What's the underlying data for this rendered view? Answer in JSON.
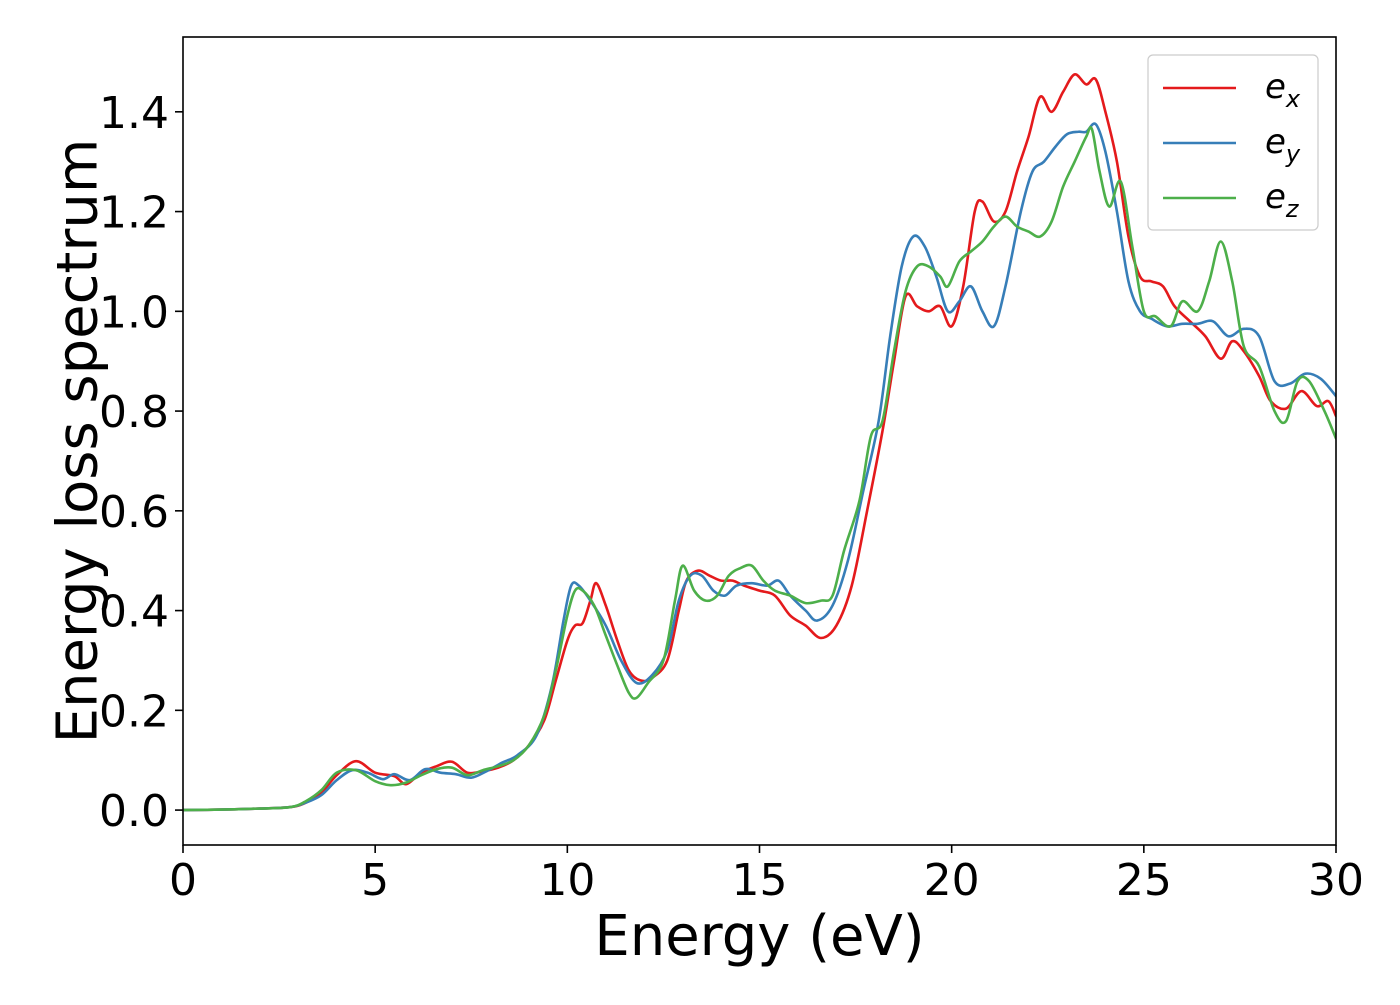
{
  "chart_data": {
    "type": "line",
    "title": "",
    "xlabel": "Energy (eV)",
    "ylabel": "Energy loss spectrum",
    "xlim": [
      0,
      30
    ],
    "ylim": [
      -0.07,
      1.55
    ],
    "xticks": [
      0,
      5,
      10,
      15,
      20,
      25,
      30
    ],
    "xtick_labels": [
      "0",
      "5",
      "10",
      "15",
      "20",
      "25",
      "30"
    ],
    "yticks": [
      0.0,
      0.2,
      0.4,
      0.6,
      0.8,
      1.0,
      1.2,
      1.4
    ],
    "ytick_labels": [
      "0.0",
      "0.2",
      "0.4",
      "0.6",
      "0.8",
      "1.0",
      "1.2",
      "1.4"
    ],
    "grid": false,
    "legend_position": "top-right",
    "series": [
      {
        "name": "e_x",
        "legend_base": "e",
        "legend_sub": "x",
        "color": "#e41a1c",
        "points": [
          [
            0,
            0.0
          ],
          [
            1,
            0.001
          ],
          [
            2,
            0.003
          ],
          [
            2.8,
            0.006
          ],
          [
            3.2,
            0.015
          ],
          [
            3.6,
            0.035
          ],
          [
            4.0,
            0.07
          ],
          [
            4.5,
            0.098
          ],
          [
            5.0,
            0.075
          ],
          [
            5.5,
            0.068
          ],
          [
            5.8,
            0.052
          ],
          [
            6.2,
            0.075
          ],
          [
            6.6,
            0.088
          ],
          [
            7.0,
            0.097
          ],
          [
            7.4,
            0.075
          ],
          [
            7.8,
            0.078
          ],
          [
            8.2,
            0.085
          ],
          [
            8.6,
            0.1
          ],
          [
            9.0,
            0.13
          ],
          [
            9.4,
            0.18
          ],
          [
            9.7,
            0.26
          ],
          [
            10.0,
            0.34
          ],
          [
            10.2,
            0.37
          ],
          [
            10.4,
            0.375
          ],
          [
            10.6,
            0.42
          ],
          [
            10.75,
            0.455
          ],
          [
            11.0,
            0.41
          ],
          [
            11.3,
            0.34
          ],
          [
            11.6,
            0.28
          ],
          [
            11.9,
            0.26
          ],
          [
            12.2,
            0.265
          ],
          [
            12.6,
            0.3
          ],
          [
            12.9,
            0.4
          ],
          [
            13.1,
            0.46
          ],
          [
            13.4,
            0.48
          ],
          [
            13.7,
            0.47
          ],
          [
            14.0,
            0.46
          ],
          [
            14.3,
            0.46
          ],
          [
            14.6,
            0.45
          ],
          [
            15.0,
            0.44
          ],
          [
            15.4,
            0.43
          ],
          [
            15.8,
            0.39
          ],
          [
            16.2,
            0.37
          ],
          [
            16.6,
            0.345
          ],
          [
            17.0,
            0.37
          ],
          [
            17.4,
            0.45
          ],
          [
            17.8,
            0.6
          ],
          [
            18.2,
            0.76
          ],
          [
            18.5,
            0.9
          ],
          [
            18.8,
            1.03
          ],
          [
            19.1,
            1.01
          ],
          [
            19.4,
            1.0
          ],
          [
            19.7,
            1.01
          ],
          [
            20.0,
            0.97
          ],
          [
            20.3,
            1.05
          ],
          [
            20.6,
            1.2
          ],
          [
            20.8,
            1.22
          ],
          [
            21.1,
            1.18
          ],
          [
            21.4,
            1.2
          ],
          [
            21.7,
            1.28
          ],
          [
            22.0,
            1.35
          ],
          [
            22.3,
            1.43
          ],
          [
            22.6,
            1.4
          ],
          [
            22.9,
            1.44
          ],
          [
            23.2,
            1.475
          ],
          [
            23.5,
            1.455
          ],
          [
            23.75,
            1.465
          ],
          [
            24.0,
            1.4
          ],
          [
            24.3,
            1.3
          ],
          [
            24.6,
            1.15
          ],
          [
            24.9,
            1.07
          ],
          [
            25.2,
            1.06
          ],
          [
            25.5,
            1.05
          ],
          [
            25.8,
            1.01
          ],
          [
            26.2,
            0.98
          ],
          [
            26.6,
            0.95
          ],
          [
            27.0,
            0.905
          ],
          [
            27.3,
            0.94
          ],
          [
            27.6,
            0.92
          ],
          [
            28.0,
            0.87
          ],
          [
            28.3,
            0.82
          ],
          [
            28.7,
            0.805
          ],
          [
            29.1,
            0.84
          ],
          [
            29.5,
            0.81
          ],
          [
            29.8,
            0.82
          ],
          [
            30.0,
            0.79
          ]
        ]
      },
      {
        "name": "e_y",
        "legend_base": "e",
        "legend_sub": "y",
        "color": "#377eb8",
        "points": [
          [
            0,
            0.0
          ],
          [
            1,
            0.001
          ],
          [
            2,
            0.003
          ],
          [
            2.8,
            0.006
          ],
          [
            3.2,
            0.015
          ],
          [
            3.6,
            0.03
          ],
          [
            4.0,
            0.06
          ],
          [
            4.4,
            0.08
          ],
          [
            4.8,
            0.075
          ],
          [
            5.2,
            0.062
          ],
          [
            5.5,
            0.072
          ],
          [
            5.9,
            0.06
          ],
          [
            6.3,
            0.082
          ],
          [
            6.7,
            0.075
          ],
          [
            7.1,
            0.072
          ],
          [
            7.5,
            0.065
          ],
          [
            7.9,
            0.078
          ],
          [
            8.3,
            0.095
          ],
          [
            8.7,
            0.11
          ],
          [
            9.2,
            0.15
          ],
          [
            9.6,
            0.25
          ],
          [
            9.9,
            0.38
          ],
          [
            10.1,
            0.45
          ],
          [
            10.3,
            0.45
          ],
          [
            10.6,
            0.42
          ],
          [
            11.0,
            0.37
          ],
          [
            11.4,
            0.3
          ],
          [
            11.8,
            0.255
          ],
          [
            12.2,
            0.27
          ],
          [
            12.6,
            0.32
          ],
          [
            12.9,
            0.42
          ],
          [
            13.2,
            0.47
          ],
          [
            13.5,
            0.47
          ],
          [
            13.8,
            0.44
          ],
          [
            14.1,
            0.43
          ],
          [
            14.4,
            0.45
          ],
          [
            14.8,
            0.455
          ],
          [
            15.2,
            0.45
          ],
          [
            15.5,
            0.46
          ],
          [
            15.8,
            0.43
          ],
          [
            16.2,
            0.4
          ],
          [
            16.5,
            0.38
          ],
          [
            16.9,
            0.41
          ],
          [
            17.3,
            0.5
          ],
          [
            17.7,
            0.64
          ],
          [
            18.1,
            0.78
          ],
          [
            18.4,
            0.95
          ],
          [
            18.7,
            1.09
          ],
          [
            19.0,
            1.15
          ],
          [
            19.3,
            1.13
          ],
          [
            19.6,
            1.07
          ],
          [
            19.9,
            1.0
          ],
          [
            20.2,
            1.02
          ],
          [
            20.5,
            1.05
          ],
          [
            20.8,
            1.0
          ],
          [
            21.1,
            0.97
          ],
          [
            21.4,
            1.05
          ],
          [
            21.8,
            1.2
          ],
          [
            22.1,
            1.28
          ],
          [
            22.4,
            1.3
          ],
          [
            22.7,
            1.33
          ],
          [
            23.0,
            1.355
          ],
          [
            23.3,
            1.36
          ],
          [
            23.5,
            1.36
          ],
          [
            23.75,
            1.375
          ],
          [
            24.0,
            1.32
          ],
          [
            24.3,
            1.2
          ],
          [
            24.6,
            1.06
          ],
          [
            24.9,
            1.0
          ],
          [
            25.2,
            0.985
          ],
          [
            25.6,
            0.97
          ],
          [
            26.0,
            0.975
          ],
          [
            26.4,
            0.975
          ],
          [
            26.8,
            0.98
          ],
          [
            27.2,
            0.95
          ],
          [
            27.6,
            0.965
          ],
          [
            28.0,
            0.95
          ],
          [
            28.4,
            0.86
          ],
          [
            28.8,
            0.855
          ],
          [
            29.2,
            0.875
          ],
          [
            29.6,
            0.865
          ],
          [
            30.0,
            0.83
          ]
        ]
      },
      {
        "name": "e_z",
        "legend_base": "e",
        "legend_sub": "z",
        "color": "#4daf4a",
        "points": [
          [
            0,
            0.0
          ],
          [
            1,
            0.001
          ],
          [
            2,
            0.003
          ],
          [
            2.8,
            0.006
          ],
          [
            3.2,
            0.018
          ],
          [
            3.6,
            0.04
          ],
          [
            4.0,
            0.075
          ],
          [
            4.5,
            0.08
          ],
          [
            5.0,
            0.058
          ],
          [
            5.4,
            0.05
          ],
          [
            5.8,
            0.055
          ],
          [
            6.2,
            0.07
          ],
          [
            6.6,
            0.082
          ],
          [
            7.0,
            0.085
          ],
          [
            7.4,
            0.07
          ],
          [
            7.8,
            0.08
          ],
          [
            8.2,
            0.088
          ],
          [
            8.6,
            0.1
          ],
          [
            9.0,
            0.13
          ],
          [
            9.4,
            0.19
          ],
          [
            9.7,
            0.28
          ],
          [
            10.0,
            0.39
          ],
          [
            10.2,
            0.44
          ],
          [
            10.4,
            0.44
          ],
          [
            10.7,
            0.41
          ],
          [
            11.0,
            0.35
          ],
          [
            11.3,
            0.29
          ],
          [
            11.6,
            0.235
          ],
          [
            11.8,
            0.225
          ],
          [
            12.1,
            0.255
          ],
          [
            12.5,
            0.3
          ],
          [
            12.8,
            0.42
          ],
          [
            13.0,
            0.49
          ],
          [
            13.3,
            0.44
          ],
          [
            13.6,
            0.42
          ],
          [
            13.9,
            0.43
          ],
          [
            14.2,
            0.47
          ],
          [
            14.5,
            0.485
          ],
          [
            14.8,
            0.49
          ],
          [
            15.1,
            0.46
          ],
          [
            15.4,
            0.44
          ],
          [
            15.8,
            0.43
          ],
          [
            16.2,
            0.415
          ],
          [
            16.6,
            0.42
          ],
          [
            16.9,
            0.43
          ],
          [
            17.2,
            0.52
          ],
          [
            17.6,
            0.62
          ],
          [
            17.9,
            0.75
          ],
          [
            18.2,
            0.78
          ],
          [
            18.5,
            0.92
          ],
          [
            18.8,
            1.04
          ],
          [
            19.1,
            1.09
          ],
          [
            19.4,
            1.09
          ],
          [
            19.7,
            1.07
          ],
          [
            19.9,
            1.05
          ],
          [
            20.2,
            1.1
          ],
          [
            20.5,
            1.12
          ],
          [
            20.8,
            1.14
          ],
          [
            21.1,
            1.17
          ],
          [
            21.4,
            1.19
          ],
          [
            21.7,
            1.17
          ],
          [
            22.0,
            1.16
          ],
          [
            22.3,
            1.15
          ],
          [
            22.6,
            1.18
          ],
          [
            22.9,
            1.25
          ],
          [
            23.2,
            1.3
          ],
          [
            23.5,
            1.35
          ],
          [
            23.65,
            1.365
          ],
          [
            23.85,
            1.28
          ],
          [
            24.1,
            1.21
          ],
          [
            24.4,
            1.26
          ],
          [
            24.7,
            1.13
          ],
          [
            25.0,
            1.0
          ],
          [
            25.3,
            0.99
          ],
          [
            25.7,
            0.97
          ],
          [
            26.0,
            1.02
          ],
          [
            26.4,
            1.0
          ],
          [
            26.7,
            1.06
          ],
          [
            27.0,
            1.14
          ],
          [
            27.3,
            1.06
          ],
          [
            27.6,
            0.93
          ],
          [
            28.0,
            0.89
          ],
          [
            28.4,
            0.8
          ],
          [
            28.7,
            0.78
          ],
          [
            29.0,
            0.86
          ],
          [
            29.3,
            0.86
          ],
          [
            29.7,
            0.8
          ],
          [
            30.0,
            0.745
          ]
        ]
      }
    ]
  }
}
